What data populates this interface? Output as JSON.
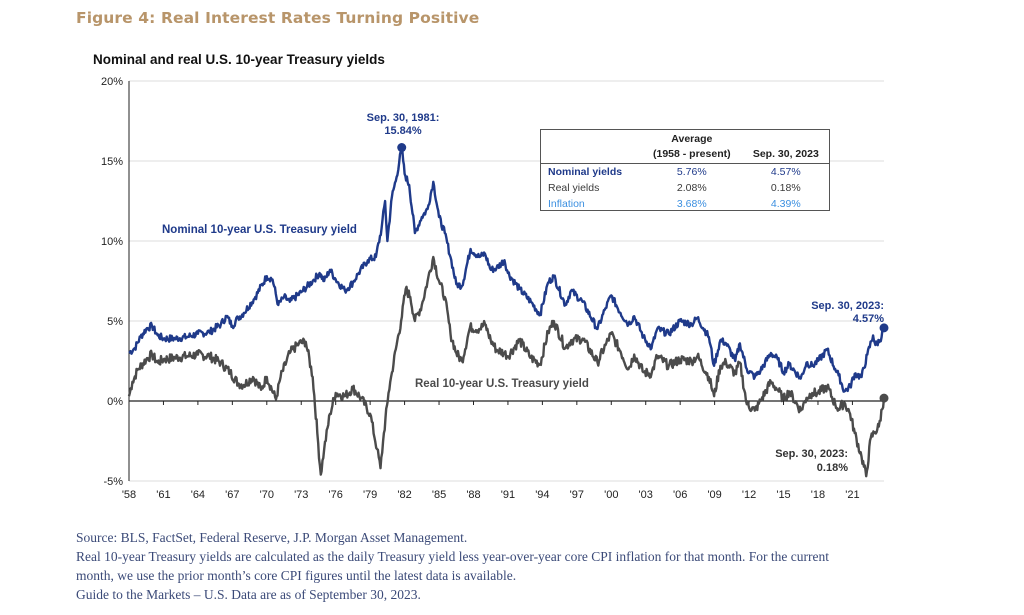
{
  "figure_title": "Figure 4: Real Interest Rates Turning Positive",
  "colors": {
    "title": "#b8956a",
    "nominal": "#1f3a8a",
    "real": "#4b4b4b",
    "inflation": "#3b8fe0",
    "notes": "#3b4a78"
  },
  "chart_data": {
    "type": "line",
    "title": "Nominal and real U.S. 10-year Treasury yields",
    "xlabel": "",
    "ylabel": "",
    "ylim": [
      -5,
      20
    ],
    "yticks": [
      "20%",
      "15%",
      "10%",
      "5%",
      "0%",
      "-5%"
    ],
    "ytick_values": [
      20,
      15,
      10,
      5,
      0,
      -5
    ],
    "xlim": [
      1958,
      2023.75
    ],
    "xticks": [
      "'58",
      "'61",
      "'64",
      "'67",
      "'70",
      "'73",
      "'76",
      "'79",
      "'82",
      "'85",
      "'88",
      "'91",
      "'94",
      "'97",
      "'00",
      "'03",
      "'06",
      "'09",
      "'12",
      "'15",
      "'18",
      "'21"
    ],
    "xtick_years": [
      1958,
      1961,
      1964,
      1967,
      1970,
      1973,
      1976,
      1979,
      1982,
      1985,
      1988,
      1991,
      1994,
      1997,
      2000,
      2003,
      2006,
      2009,
      2012,
      2015,
      2018,
      2021
    ],
    "grid": "horizontal",
    "series": [
      {
        "name": "Nominal 10-year U.S. Treasury yield",
        "points": [
          [
            1958.0,
            3.0
          ],
          [
            1958.5,
            3.3
          ],
          [
            1959.0,
            4.0
          ],
          [
            1959.5,
            4.5
          ],
          [
            1960.0,
            4.7
          ],
          [
            1960.5,
            4.1
          ],
          [
            1961.0,
            3.9
          ],
          [
            1962.0,
            3.9
          ],
          [
            1963.0,
            4.0
          ],
          [
            1964.0,
            4.2
          ],
          [
            1965.0,
            4.3
          ],
          [
            1966.0,
            4.8
          ],
          [
            1966.5,
            5.3
          ],
          [
            1967.0,
            4.7
          ],
          [
            1967.5,
            5.2
          ],
          [
            1968.0,
            5.5
          ],
          [
            1969.0,
            6.5
          ],
          [
            1970.0,
            7.8
          ],
          [
            1970.5,
            7.6
          ],
          [
            1971.0,
            6.0
          ],
          [
            1971.5,
            6.5
          ],
          [
            1972.0,
            6.2
          ],
          [
            1973.0,
            6.8
          ],
          [
            1974.0,
            7.5
          ],
          [
            1974.6,
            8.0
          ],
          [
            1975.0,
            7.5
          ],
          [
            1975.5,
            8.2
          ],
          [
            1976.0,
            7.6
          ],
          [
            1976.8,
            6.9
          ],
          [
            1977.5,
            7.4
          ],
          [
            1978.0,
            8.0
          ],
          [
            1978.8,
            8.8
          ],
          [
            1979.5,
            9.0
          ],
          [
            1980.0,
            10.8
          ],
          [
            1980.3,
            12.5
          ],
          [
            1980.5,
            10.0
          ],
          [
            1980.9,
            12.8
          ],
          [
            1981.3,
            14.0
          ],
          [
            1981.75,
            15.84
          ],
          [
            1982.0,
            14.2
          ],
          [
            1982.4,
            13.5
          ],
          [
            1982.9,
            10.5
          ],
          [
            1983.5,
            11.5
          ],
          [
            1984.0,
            12.0
          ],
          [
            1984.5,
            13.7
          ],
          [
            1985.0,
            11.5
          ],
          [
            1985.5,
            10.5
          ],
          [
            1986.0,
            9.0
          ],
          [
            1986.5,
            7.3
          ],
          [
            1987.0,
            7.2
          ],
          [
            1987.75,
            9.5
          ],
          [
            1988.5,
            9.0
          ],
          [
            1989.0,
            9.2
          ],
          [
            1989.5,
            8.2
          ],
          [
            1990.0,
            8.3
          ],
          [
            1990.7,
            8.8
          ],
          [
            1991.0,
            8.0
          ],
          [
            1992.0,
            7.0
          ],
          [
            1993.0,
            6.2
          ],
          [
            1993.8,
            5.4
          ],
          [
            1994.5,
            7.4
          ],
          [
            1995.0,
            7.8
          ],
          [
            1996.0,
            6.0
          ],
          [
            1996.5,
            6.9
          ],
          [
            1997.5,
            6.2
          ],
          [
            1998.8,
            4.5
          ],
          [
            1999.5,
            5.8
          ],
          [
            2000.0,
            6.6
          ],
          [
            2000.8,
            5.5
          ],
          [
            2001.5,
            4.8
          ],
          [
            2002.0,
            5.3
          ],
          [
            2002.8,
            4.0
          ],
          [
            2003.5,
            3.3
          ],
          [
            2004.0,
            4.5
          ],
          [
            2005.0,
            4.2
          ],
          [
            2006.0,
            5.0
          ],
          [
            2007.0,
            4.8
          ],
          [
            2007.5,
            5.2
          ],
          [
            2008.5,
            4.0
          ],
          [
            2008.95,
            2.2
          ],
          [
            2009.5,
            3.8
          ],
          [
            2010.0,
            3.6
          ],
          [
            2010.8,
            2.5
          ],
          [
            2011.2,
            3.6
          ],
          [
            2011.8,
            2.0
          ],
          [
            2012.5,
            1.5
          ],
          [
            2013.0,
            1.9
          ],
          [
            2013.9,
            3.0
          ],
          [
            2014.5,
            2.6
          ],
          [
            2015.0,
            1.8
          ],
          [
            2015.5,
            2.3
          ],
          [
            2016.5,
            1.4
          ],
          [
            2017.0,
            2.4
          ],
          [
            2017.5,
            2.2
          ],
          [
            2018.0,
            2.5
          ],
          [
            2018.8,
            3.2
          ],
          [
            2019.5,
            2.0
          ],
          [
            2019.8,
            1.6
          ],
          [
            2020.3,
            0.6
          ],
          [
            2020.8,
            0.9
          ],
          [
            2021.2,
            1.7
          ],
          [
            2021.8,
            1.5
          ],
          [
            2022.3,
            2.9
          ],
          [
            2022.8,
            4.1
          ],
          [
            2023.0,
            3.5
          ],
          [
            2023.4,
            3.8
          ],
          [
            2023.75,
            4.57
          ]
        ]
      },
      {
        "name": "Real 10-year U.S. Treasury yield",
        "points": [
          [
            1958.0,
            0.3
          ],
          [
            1958.3,
            1.2
          ],
          [
            1958.8,
            2.0
          ],
          [
            1959.5,
            2.6
          ],
          [
            1960.0,
            2.9
          ],
          [
            1960.5,
            2.4
          ],
          [
            1961.0,
            2.6
          ],
          [
            1962.0,
            2.7
          ],
          [
            1963.0,
            2.8
          ],
          [
            1964.0,
            2.9
          ],
          [
            1965.0,
            2.8
          ],
          [
            1966.0,
            2.4
          ],
          [
            1966.8,
            1.8
          ],
          [
            1967.5,
            1.1
          ],
          [
            1968.0,
            1.0
          ],
          [
            1968.8,
            1.5
          ],
          [
            1969.5,
            0.7
          ],
          [
            1970.0,
            1.5
          ],
          [
            1970.8,
            0.1
          ],
          [
            1971.2,
            1.5
          ],
          [
            1972.0,
            3.0
          ],
          [
            1972.8,
            3.6
          ],
          [
            1973.4,
            3.7
          ],
          [
            1974.0,
            1.5
          ],
          [
            1974.4,
            -2.0
          ],
          [
            1974.7,
            -4.6
          ],
          [
            1975.0,
            -3.0
          ],
          [
            1975.5,
            -0.8
          ],
          [
            1976.0,
            0.5
          ],
          [
            1976.8,
            0.3
          ],
          [
            1977.5,
            0.8
          ],
          [
            1978.2,
            0.2
          ],
          [
            1979.0,
            -0.8
          ],
          [
            1979.6,
            -3.0
          ],
          [
            1979.9,
            -4.2
          ],
          [
            1980.2,
            -2.0
          ],
          [
            1980.6,
            0.5
          ],
          [
            1980.9,
            1.8
          ],
          [
            1981.3,
            3.5
          ],
          [
            1981.7,
            5.0
          ],
          [
            1982.1,
            7.0
          ],
          [
            1982.5,
            6.5
          ],
          [
            1982.9,
            5.0
          ],
          [
            1983.5,
            6.0
          ],
          [
            1984.0,
            7.5
          ],
          [
            1984.5,
            9.0
          ],
          [
            1985.0,
            7.5
          ],
          [
            1985.5,
            6.5
          ],
          [
            1986.0,
            4.2
          ],
          [
            1986.5,
            3.0
          ],
          [
            1987.0,
            2.5
          ],
          [
            1987.7,
            4.6
          ],
          [
            1988.5,
            4.5
          ],
          [
            1989.0,
            4.8
          ],
          [
            1989.5,
            3.8
          ],
          [
            1990.0,
            3.2
          ],
          [
            1990.7,
            3.0
          ],
          [
            1991.0,
            2.8
          ],
          [
            1992.0,
            3.8
          ],
          [
            1993.0,
            2.7
          ],
          [
            1993.8,
            2.3
          ],
          [
            1994.5,
            4.3
          ],
          [
            1995.0,
            5.0
          ],
          [
            1996.0,
            3.3
          ],
          [
            1996.5,
            3.8
          ],
          [
            1997.5,
            3.9
          ],
          [
            1998.8,
            2.4
          ],
          [
            1999.5,
            3.5
          ],
          [
            2000.0,
            4.2
          ],
          [
            2000.8,
            3.1
          ],
          [
            2001.5,
            2.0
          ],
          [
            2002.0,
            2.9
          ],
          [
            2002.8,
            1.8
          ],
          [
            2003.5,
            1.7
          ],
          [
            2004.0,
            2.8
          ],
          [
            2005.0,
            2.2
          ],
          [
            2006.0,
            2.6
          ],
          [
            2007.0,
            2.5
          ],
          [
            2007.5,
            2.8
          ],
          [
            2008.5,
            1.5
          ],
          [
            2008.95,
            0.3
          ],
          [
            2009.5,
            2.2
          ],
          [
            2010.0,
            2.4
          ],
          [
            2010.8,
            1.7
          ],
          [
            2011.2,
            2.4
          ],
          [
            2011.8,
            -0.2
          ],
          [
            2012.5,
            -0.6
          ],
          [
            2013.0,
            0.0
          ],
          [
            2013.9,
            1.2
          ],
          [
            2014.5,
            0.7
          ],
          [
            2015.0,
            0.1
          ],
          [
            2015.5,
            0.6
          ],
          [
            2016.5,
            -0.6
          ],
          [
            2017.0,
            0.2
          ],
          [
            2017.5,
            0.5
          ],
          [
            2018.0,
            0.5
          ],
          [
            2018.8,
            0.9
          ],
          [
            2019.5,
            -0.2
          ],
          [
            2019.8,
            -0.5
          ],
          [
            2020.3,
            -0.1
          ],
          [
            2020.8,
            -0.8
          ],
          [
            2021.2,
            -2.0
          ],
          [
            2021.8,
            -3.5
          ],
          [
            2022.2,
            -4.7
          ],
          [
            2022.6,
            -2.3
          ],
          [
            2022.9,
            -2.0
          ],
          [
            2023.3,
            -1.6
          ],
          [
            2023.75,
            0.18
          ]
        ]
      }
    ],
    "annotations": {
      "peak": {
        "line1": "Sep. 30, 1981:",
        "line2": "15.84%",
        "x": 1981.75,
        "y": 15.84
      },
      "nominal_end": {
        "line1": "Sep. 30, 2023:",
        "line2": "4.57%",
        "x": 2023.75,
        "y": 4.57
      },
      "real_end": {
        "line1": "Sep. 30, 2023:",
        "line2": "0.18%",
        "x": 2023.75,
        "y": 0.18
      },
      "nominal_label": "Nominal  10-year U.S. Treasury yield",
      "real_label": "Real 10-year U.S. Treasury yield"
    },
    "table": {
      "header_average_line1": "Average",
      "header_average_line2": "(1958 - present)",
      "header_current": "Sep. 30, 2023",
      "rows": [
        {
          "label": "Nominal yields",
          "average": "5.76%",
          "current": "4.57%"
        },
        {
          "label": "Real yields",
          "average": "2.08%",
          "current": "0.18%"
        },
        {
          "label": "Inflation",
          "average": "3.68%",
          "current": "4.39%"
        }
      ]
    }
  },
  "notes": {
    "source": "Source: BLS, FactSet, Federal Reserve, J.P. Morgan Asset Management.",
    "line2": "Real 10-year Treasury yields are calculated as the daily Treasury yield less year-over-year core CPI inflation for that month. For the current",
    "line3": "month, we use the prior month’s core CPI figures until the latest data is available.",
    "line4": "Guide to the Markets – U.S. Data are as of September 30, 2023."
  }
}
